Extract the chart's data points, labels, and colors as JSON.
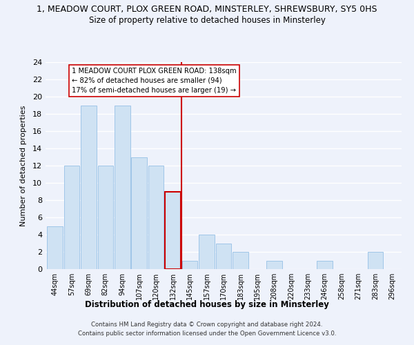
{
  "title": "1, MEADOW COURT, PLOX GREEN ROAD, MINSTERLEY, SHREWSBURY, SY5 0HS",
  "subtitle": "Size of property relative to detached houses in Minsterley",
  "xlabel": "Distribution of detached houses by size in Minsterley",
  "ylabel": "Number of detached properties",
  "bin_labels": [
    "44sqm",
    "57sqm",
    "69sqm",
    "82sqm",
    "94sqm",
    "107sqm",
    "120sqm",
    "132sqm",
    "145sqm",
    "157sqm",
    "170sqm",
    "183sqm",
    "195sqm",
    "208sqm",
    "220sqm",
    "233sqm",
    "246sqm",
    "258sqm",
    "271sqm",
    "283sqm",
    "296sqm"
  ],
  "bar_heights": [
    5,
    12,
    19,
    12,
    19,
    13,
    12,
    9,
    1,
    4,
    3,
    2,
    0,
    1,
    0,
    0,
    1,
    0,
    0,
    2,
    0
  ],
  "bar_color": "#cfe2f3",
  "bar_edge_color": "#9fc5e8",
  "highlight_bar_index": 7,
  "highlight_color": "#cc0000",
  "vline_x_index": 7.5,
  "annotation_text": "1 MEADOW COURT PLOX GREEN ROAD: 138sqm\n← 82% of detached houses are smaller (94)\n17% of semi-detached houses are larger (19) →",
  "annotation_box_color": "#ffffff",
  "annotation_box_edge": "#cc0000",
  "ylim": [
    0,
    24
  ],
  "yticks": [
    0,
    2,
    4,
    6,
    8,
    10,
    12,
    14,
    16,
    18,
    20,
    22,
    24
  ],
  "footer_line1": "Contains HM Land Registry data © Crown copyright and database right 2024.",
  "footer_line2": "Contains public sector information licensed under the Open Government Licence v3.0.",
  "bg_color": "#eef2fb",
  "grid_color": "#ffffff"
}
